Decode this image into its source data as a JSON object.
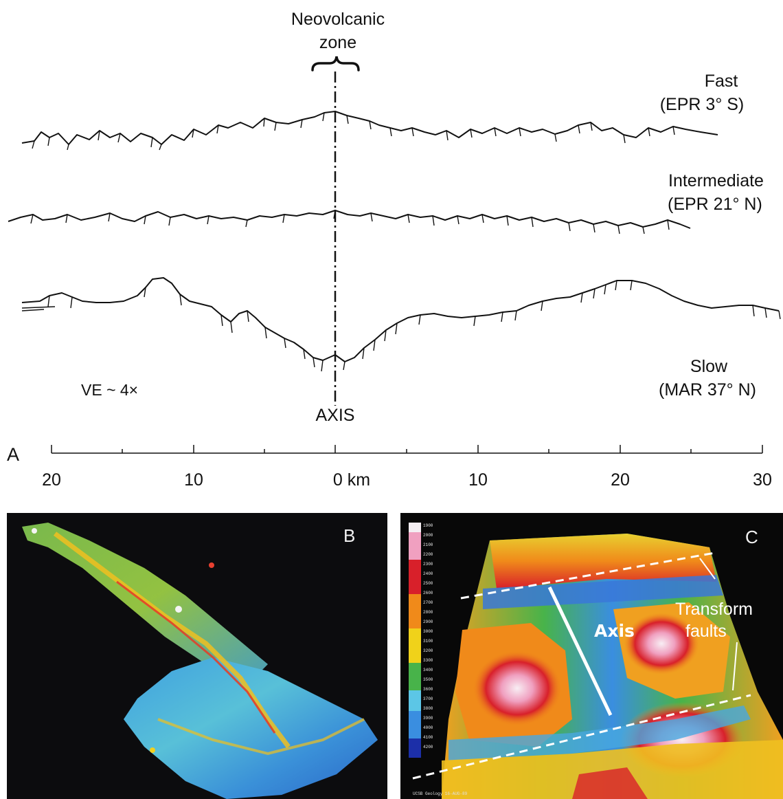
{
  "panel_a": {
    "letter": "A",
    "zone_label_line1": "Neovolcanic",
    "zone_label_line2": "zone",
    "axis_label": "AXIS",
    "ve_label": "VE ~ 4×",
    "profiles": [
      {
        "name_line1": "Fast",
        "name_line2": "(EPR 3° S)"
      },
      {
        "name_line1": "Intermediate",
        "name_line2": "(EPR 21° N)"
      },
      {
        "name_line1": "Slow",
        "name_line2": "(MAR 37° N)"
      }
    ],
    "scale": {
      "tick_labels": [
        "20",
        "10",
        "0 km",
        "10",
        "20",
        "30"
      ]
    }
  },
  "panel_b": {
    "letter": "B"
  },
  "panel_c": {
    "letter": "C",
    "axis_label": "Axis",
    "transform_label_line1": "Transform",
    "transform_label_line2": "faults",
    "color_legend": [
      "1900",
      "2000",
      "2100",
      "2200",
      "2300",
      "2400",
      "2500",
      "2600",
      "2700",
      "2800",
      "2900",
      "3000",
      "3100",
      "3200",
      "3300",
      "3400",
      "3500",
      "3600",
      "3700",
      "3800",
      "3900",
      "4000",
      "4100",
      "4200"
    ],
    "colors": {
      "deep": "#1c2fa8",
      "mid_blue": "#3a8ee0",
      "cyan": "#5cc6e6",
      "green": "#48b34a",
      "yellow": "#f0d21a",
      "orange": "#f08a1a",
      "red": "#d8202a",
      "pink": "#f0a0c0",
      "white": "#f4eef2"
    },
    "footer": "UCSB Geology 16-AUG-89"
  }
}
